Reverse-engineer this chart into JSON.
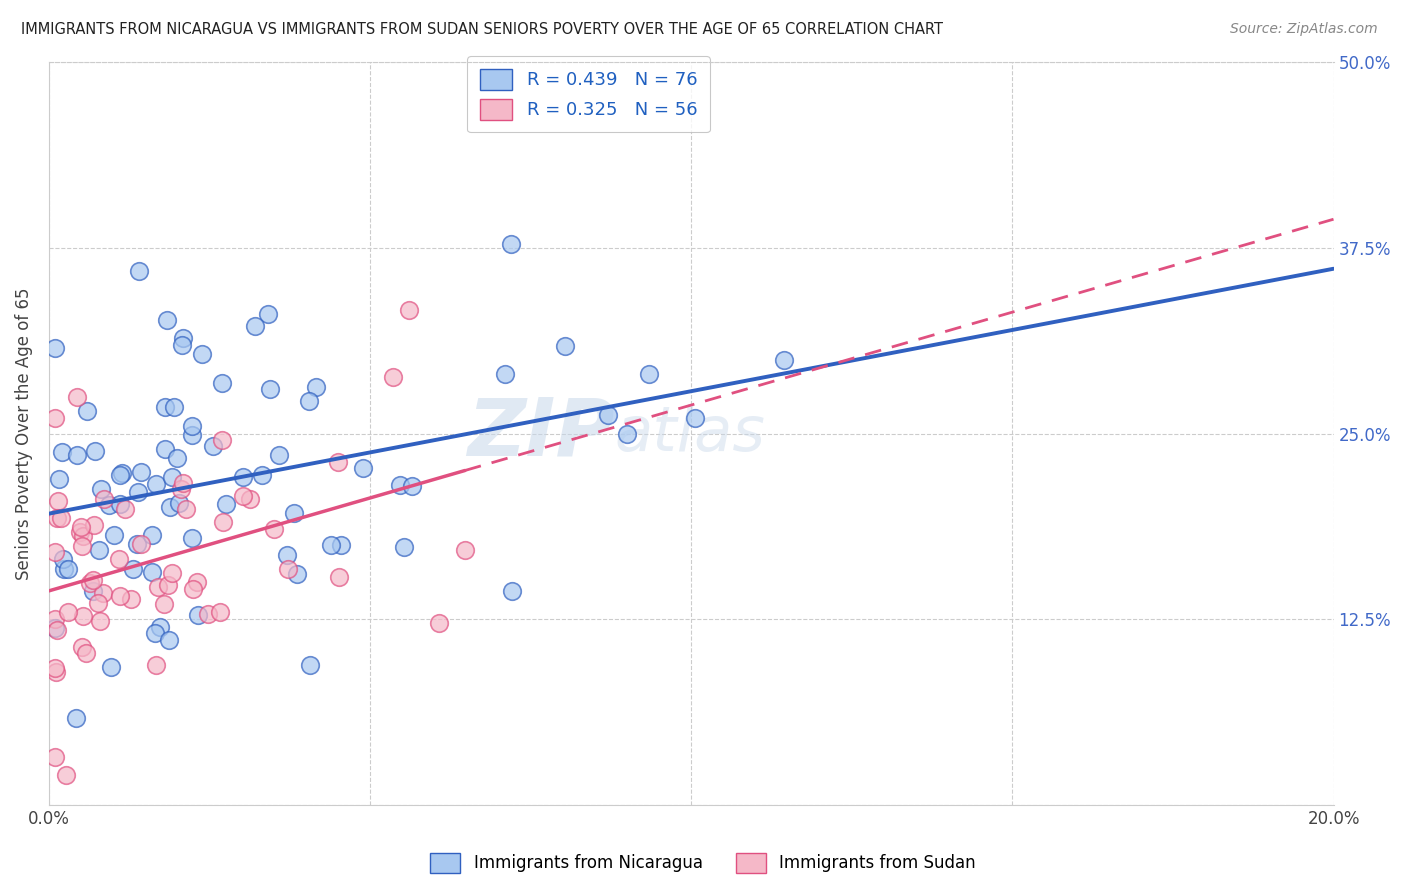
{
  "title": "IMMIGRANTS FROM NICARAGUA VS IMMIGRANTS FROM SUDAN SENIORS POVERTY OVER THE AGE OF 65 CORRELATION CHART",
  "source": "Source: ZipAtlas.com",
  "ylabel": "Seniors Poverty Over the Age of 65",
  "xlim": [
    0.0,
    0.2
  ],
  "ylim": [
    0.0,
    0.5
  ],
  "xticks": [
    0.0,
    0.05,
    0.1,
    0.15,
    0.2
  ],
  "yticks": [
    0.0,
    0.125,
    0.25,
    0.375,
    0.5
  ],
  "xticklabels": [
    "0.0%",
    "",
    "",
    "",
    "20.0%"
  ],
  "yticklabels": [
    "",
    "12.5%",
    "25.0%",
    "37.5%",
    "50.0%"
  ],
  "nicaragua_color": "#a8c8f0",
  "sudan_color": "#f5b8c8",
  "nicaragua_line_color": "#3060c0",
  "sudan_line_color": "#e05080",
  "watermark_zip": "ZIP",
  "watermark_atlas": "atlas",
  "legend_text1": "R = 0.439   N = 76",
  "legend_text2": "R = 0.325   N = 56",
  "legend_label_nicaragua": "Immigrants from Nicaragua",
  "legend_label_sudan": "Immigrants from Sudan",
  "nic_R": 0.439,
  "nic_N": 76,
  "sud_R": 0.325,
  "sud_N": 56,
  "background_color": "#ffffff",
  "grid_color": "#cccccc"
}
